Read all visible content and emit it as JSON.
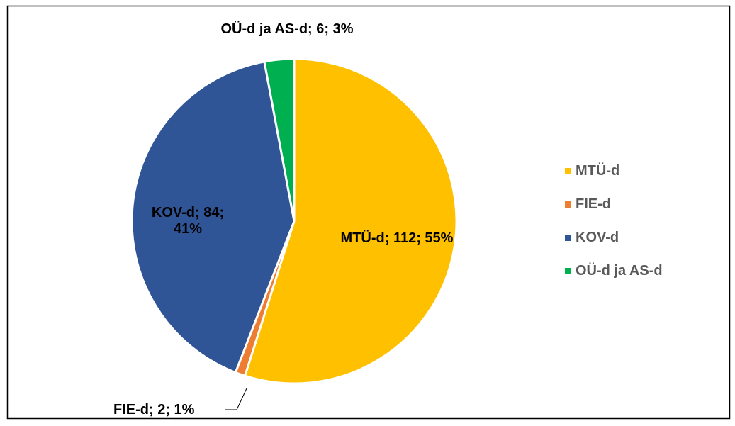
{
  "chart_data": {
    "type": "pie",
    "categories": [
      "MTÜ-d",
      "FIE-d",
      "KOV-d",
      "OÜ-d ja AS-d"
    ],
    "values": [
      112,
      2,
      84,
      6
    ],
    "value_labels": [
      "MTÜ-d; 112; 55%",
      "FIE-d; 2; 1%",
      "KOV-d; 84; 41%",
      "OÜ-d ja AS-d; 6; 3%"
    ],
    "colors": [
      "#FFC000",
      "#ED7D31",
      "#2F5597",
      "#00B050"
    ],
    "legend": "right"
  }
}
